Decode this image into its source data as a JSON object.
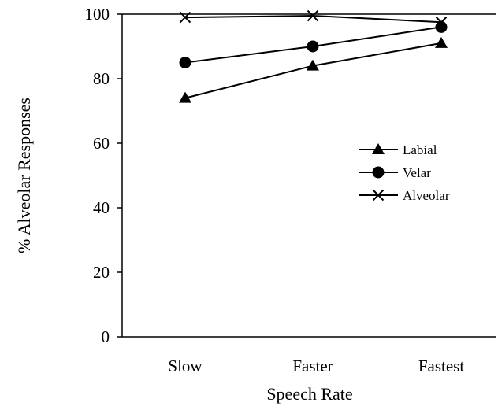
{
  "chart_data": {
    "type": "line",
    "title": "",
    "xlabel": "Speech Rate",
    "ylabel": "% Alveolar Responses",
    "categories": [
      "Slow",
      "Faster",
      "Fastest"
    ],
    "ylim": [
      0,
      100
    ],
    "yticks": [
      "0",
      "20",
      "40",
      "60",
      "80",
      "100"
    ],
    "grid": false,
    "legend": "center-right",
    "series": [
      {
        "name": "Labial",
        "marker": "triangle",
        "values": [
          74,
          84,
          91
        ],
        "color": "#000000"
      },
      {
        "name": "Velar",
        "marker": "circle",
        "values": [
          85,
          90,
          96
        ],
        "color": "#000000"
      },
      {
        "name": "Alveolar",
        "marker": "x",
        "values": [
          99,
          99.5,
          97.5
        ],
        "color": "#000000"
      }
    ]
  }
}
